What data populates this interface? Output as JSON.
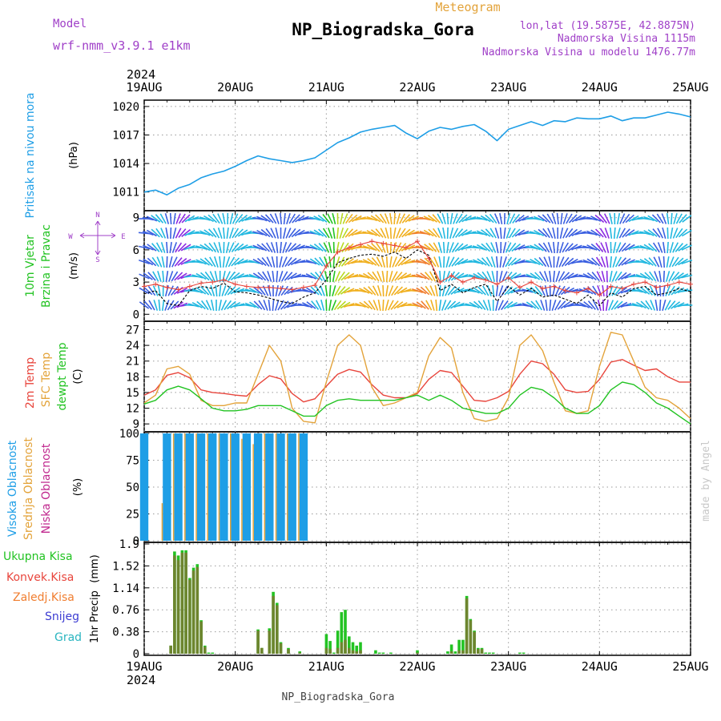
{
  "header": {
    "model_label": "Model",
    "model_name": "wrf-nmm_v3.9.1 e1km",
    "subtitle": "Meteogram",
    "title": "NP_Biogradska_Gora",
    "lonlat": "lon,lat (19.5875E, 42.8875N)",
    "elevation": "Nadmorska Visina 1115m",
    "model_elevation": "Nadmorska Visina u modelu 1476.77m"
  },
  "footer": {
    "station": "NP_Biogradska_Gora",
    "credit": "made by Angel"
  },
  "time_axis": {
    "year": "2024",
    "labels": [
      "19AUG",
      "20AUG",
      "21AUG",
      "22AUG",
      "23AUG",
      "24AUG",
      "25AUG"
    ]
  },
  "colors": {
    "pressure": "#1e9ee6",
    "temp2m": "#e8453c",
    "sfc_temp": "#e3a33a",
    "dewpt": "#22c322",
    "high_cloud": "#1e9ee6",
    "mid_cloud": "#e3a33a",
    "low_cloud": "#c0288e",
    "total_precip": "#22c322",
    "conv_precip": "#e8453c",
    "frz_precip": "#f07e30",
    "snow": "#3c3cd2",
    "graupel": "#2ab5c0",
    "wind_gust": "#e8453c",
    "wind_speed": "#000000",
    "purple": "#a040c8"
  },
  "panels": {
    "pressure": {
      "label": "Pritisak na nivou mora",
      "unit": "(hPa)"
    },
    "wind": {
      "label1": "10m Vjetar",
      "label2": "Brzina i Pravac",
      "unit": "(m/s)",
      "compass": {
        "n": "N",
        "e": "E",
        "w": "W",
        "s": "S"
      }
    },
    "temp": {
      "label_2m": "2m Temp",
      "label_sfc": "SFC Temp",
      "label_dew": "dewpt Temp",
      "unit": "(C)"
    },
    "cloud": {
      "label_high": "Visoka Oblacnost",
      "label_mid": "Srednja Oblacnost",
      "label_low": "Niska Oblacnost",
      "unit": "(%)"
    },
    "precip": {
      "label": "1hr Precip",
      "unit": "(mm)",
      "legend": [
        "Ukupna Kisa",
        "Konvek.Kisa",
        "Zaledj.Kisa",
        "Snijeg",
        "Grad"
      ]
    }
  },
  "chart_data": [
    {
      "type": "line",
      "id": "pressure",
      "ylabel": "Pritisak na nivou mora (hPa)",
      "ylim": [
        1009.2,
        1020.5
      ],
      "yticks": [
        "1011",
        "1014",
        "1017",
        "1020"
      ],
      "x": [
        0,
        3,
        6,
        9,
        12,
        15,
        18,
        21,
        24,
        27,
        30,
        33,
        36,
        39,
        42,
        45,
        48,
        51,
        54,
        57,
        60,
        63,
        66,
        69,
        72,
        75,
        78,
        81,
        84,
        87,
        90,
        93,
        96,
        99,
        102,
        105,
        108,
        111,
        114,
        117,
        120,
        123,
        126,
        129,
        132,
        135,
        138,
        141,
        144
      ],
      "series": [
        {
          "values": [
            1011.0,
            1011.2,
            1010.7,
            1011.4,
            1011.8,
            1012.5,
            1012.9,
            1013.2,
            1013.7,
            1014.3,
            1014.8,
            1014.5,
            1014.3,
            1014.1,
            1014.3,
            1014.6,
            1015.4,
            1016.2,
            1016.7,
            1017.3,
            1017.6,
            1017.8,
            1018.0,
            1017.2,
            1016.6,
            1017.4,
            1017.8,
            1017.6,
            1017.9,
            1018.1,
            1017.4,
            1016.4,
            1017.6,
            1018.0,
            1018.4,
            1018.0,
            1018.5,
            1018.4,
            1018.8,
            1018.7,
            1018.7,
            1019.0,
            1018.5,
            1018.8,
            1018.8,
            1019.1,
            1019.4,
            1019.2,
            1018.9
          ]
        }
      ]
    },
    {
      "type": "line",
      "id": "wind",
      "ylabel": "10m Vjetar Brzina i Pravac (m/s)",
      "ylim": [
        -0.5,
        9.5
      ],
      "yticks": [
        "0",
        "3",
        "6",
        "9"
      ],
      "x": [
        0,
        3,
        6,
        9,
        12,
        15,
        18,
        21,
        24,
        27,
        30,
        33,
        36,
        39,
        42,
        45,
        48,
        51,
        54,
        57,
        60,
        63,
        66,
        69,
        72,
        75,
        78,
        81,
        84,
        87,
        90,
        93,
        96,
        99,
        102,
        105,
        108,
        111,
        114,
        117,
        120,
        123,
        126,
        129,
        132,
        135,
        138,
        141,
        144
      ],
      "series": [
        {
          "name": "gust",
          "values": [
            2.6,
            2.8,
            2.5,
            2.3,
            2.6,
            2.9,
            3.0,
            3.2,
            2.8,
            2.6,
            2.5,
            2.5,
            2.4,
            2.3,
            2.5,
            2.7,
            4.5,
            5.8,
            6.2,
            6.5,
            6.8,
            6.6,
            6.4,
            6.2,
            6.8,
            5.2,
            3.0,
            3.6,
            3.0,
            3.4,
            3.2,
            2.8,
            3.4,
            2.5,
            3.0,
            2.4,
            2.6,
            2.2,
            2.0,
            2.4,
            1.8,
            2.6,
            2.4,
            2.8,
            3.0,
            2.5,
            2.7,
            3.0,
            2.8
          ]
        },
        {
          "name": "speed",
          "values": [
            1.9,
            2.2,
            1.0,
            0.8,
            2.2,
            2.6,
            2.4,
            2.9,
            2.1,
            2.0,
            1.8,
            1.5,
            1.2,
            1.0,
            1.6,
            2.0,
            3.2,
            4.8,
            5.2,
            5.5,
            5.6,
            5.4,
            5.8,
            5.2,
            6.0,
            5.5,
            2.2,
            2.8,
            2.0,
            2.5,
            2.8,
            1.2,
            2.6,
            1.8,
            2.4,
            1.6,
            1.8,
            1.4,
            1.0,
            1.8,
            0.8,
            2.0,
            1.6,
            2.4,
            2.6,
            1.8,
            2.0,
            2.4,
            2.1
          ]
        }
      ]
    },
    {
      "type": "line",
      "id": "temperature",
      "ylabel": "Temp (C)",
      "ylim": [
        7.8,
        28.3
      ],
      "yticks": [
        "9",
        "12",
        "15",
        "18",
        "21",
        "24",
        "27"
      ],
      "x": [
        0,
        3,
        6,
        9,
        12,
        15,
        18,
        21,
        24,
        27,
        30,
        33,
        36,
        39,
        42,
        45,
        48,
        51,
        54,
        57,
        60,
        63,
        66,
        69,
        72,
        75,
        78,
        81,
        84,
        87,
        90,
        93,
        96,
        99,
        102,
        105,
        108,
        111,
        114,
        117,
        120,
        123,
        126,
        129,
        132,
        135,
        138,
        141,
        144
      ],
      "series": [
        {
          "name": "2m Temp",
          "values": [
            14.5,
            15.5,
            18.3,
            18.8,
            17.8,
            15.5,
            15.0,
            14.8,
            14.5,
            14.3,
            16.5,
            18.2,
            17.6,
            14.8,
            13.2,
            13.8,
            16.2,
            18.5,
            19.4,
            18.9,
            16.5,
            14.5,
            14.0,
            14.0,
            14.8,
            17.5,
            19.2,
            18.8,
            16.2,
            13.5,
            13.3,
            14.0,
            15.2,
            18.5,
            21.0,
            20.5,
            18.5,
            15.5,
            15.0,
            15.2,
            17.5,
            20.8,
            21.3,
            20.2,
            19.2,
            19.5,
            18.0,
            17.0,
            17.0
          ]
        },
        {
          "name": "SFC Temp",
          "values": [
            13.0,
            14.5,
            19.5,
            20.0,
            18.5,
            13.5,
            12.5,
            12.5,
            13.0,
            13.0,
            18.5,
            24.0,
            21.0,
            12.0,
            9.5,
            9.2,
            17.0,
            24.0,
            26.0,
            24.0,
            16.0,
            12.5,
            13.0,
            14.0,
            15.0,
            22.0,
            25.5,
            23.5,
            15.0,
            10.0,
            9.5,
            10.0,
            14.0,
            24.0,
            26.0,
            23.0,
            17.0,
            11.5,
            11.0,
            11.5,
            20.0,
            26.5,
            26.0,
            21.0,
            16.0,
            14.0,
            13.5,
            12.0,
            10.0
          ]
        },
        {
          "name": "dewpt Temp",
          "values": [
            12.8,
            13.5,
            15.5,
            16.2,
            15.5,
            13.8,
            12.0,
            11.5,
            11.5,
            11.8,
            12.5,
            12.5,
            12.5,
            11.5,
            10.5,
            10.5,
            12.5,
            13.5,
            13.8,
            13.5,
            13.5,
            13.5,
            13.5,
            14.0,
            14.5,
            13.5,
            14.5,
            13.5,
            12.0,
            11.5,
            11.0,
            11.0,
            12.0,
            14.5,
            16.0,
            15.5,
            14.0,
            12.0,
            11.0,
            11.0,
            12.5,
            15.5,
            17.0,
            16.5,
            15.0,
            13.0,
            12.0,
            10.5,
            9.0
          ]
        }
      ]
    },
    {
      "type": "bar",
      "id": "cloud",
      "ylabel": "Oblacnost (%)",
      "ylim": [
        0,
        100
      ],
      "yticks": [
        "0",
        "25",
        "50",
        "75",
        "100"
      ],
      "x": [
        0,
        3,
        6,
        9,
        12,
        15,
        18,
        21,
        24,
        27,
        30,
        33,
        36,
        39,
        42,
        45,
        48,
        51,
        54,
        57,
        60,
        63,
        66,
        69,
        72,
        75,
        78,
        81,
        84,
        87,
        90,
        93,
        96,
        99,
        102,
        105,
        108,
        111,
        114,
        117,
        120,
        123,
        126,
        129,
        132,
        135,
        138,
        141,
        144
      ],
      "series": [
        {
          "name": "Visoka Oblacnost",
          "values": [
            100,
            0,
            100,
            100,
            100,
            100,
            100,
            100,
            100,
            100,
            100,
            100,
            100,
            100,
            100,
            0,
            0,
            0,
            0,
            0,
            0,
            0,
            0,
            0,
            0,
            0,
            0,
            0,
            0,
            0,
            0,
            0,
            0,
            0,
            0,
            0,
            0,
            0,
            0,
            0,
            0,
            0,
            0,
            0,
            0,
            0,
            0,
            0,
            0
          ]
        },
        {
          "name": "Srednja Oblacnost",
          "values": [
            0,
            0,
            35,
            100,
            100,
            100,
            100,
            100,
            100,
            95,
            90,
            100,
            100,
            100,
            100,
            0,
            0,
            0,
            0,
            0,
            0,
            0,
            0,
            0,
            0,
            0,
            0,
            0,
            0,
            0,
            0,
            0,
            0,
            0,
            0,
            0,
            0,
            0,
            0,
            0,
            0,
            0,
            0,
            0,
            0,
            0,
            0,
            0,
            0
          ]
        },
        {
          "name": "Niska Oblacnost",
          "values": [
            0,
            0,
            0,
            0,
            0,
            0,
            0,
            0,
            0,
            0,
            0,
            0,
            0,
            0,
            0,
            0,
            0,
            0,
            0,
            0,
            0,
            0,
            0,
            0,
            0,
            0,
            0,
            0,
            0,
            0,
            0,
            0,
            0,
            0,
            0,
            0,
            0,
            0,
            0,
            0,
            0,
            0,
            0,
            0,
            0,
            0,
            0,
            0,
            0
          ]
        }
      ]
    },
    {
      "type": "bar",
      "id": "precip",
      "ylabel": "1hr Precip (mm)",
      "ylim": [
        0,
        1.9
      ],
      "yticks": [
        "0",
        "0.38",
        "0.76",
        "1.14",
        "1.52",
        "1.9"
      ],
      "x": [
        7,
        8,
        9,
        10,
        11,
        12,
        13,
        14,
        15,
        16,
        17,
        18,
        30,
        31,
        33,
        34,
        35,
        36,
        38,
        41,
        48,
        49,
        50,
        51,
        52,
        53,
        54,
        55,
        56,
        57,
        61,
        62,
        63,
        65,
        72,
        80,
        81,
        82,
        83,
        84,
        85,
        86,
        87,
        88,
        89,
        90,
        91,
        92,
        99,
        100
      ],
      "series": [
        {
          "name": "Ukupna Kisa",
          "values": [
            0.14,
            1.77,
            1.7,
            1.79,
            1.79,
            1.31,
            1.49,
            1.55,
            0.58,
            0.14,
            0.02,
            0.02,
            0.42,
            0.1,
            0.44,
            1.07,
            0.88,
            0.2,
            0.1,
            0.04,
            0.34,
            0.22,
            0.02,
            0.4,
            0.72,
            0.76,
            0.3,
            0.2,
            0.14,
            0.2,
            0.06,
            0.02,
            0.02,
            0.02,
            0.06,
            0.04,
            0.16,
            0.04,
            0.24,
            0.24,
            1.0,
            0.6,
            0.4,
            0.1,
            0.1,
            0.02,
            0.02,
            0.02,
            0.02,
            0.02
          ]
        },
        {
          "name": "Konvek.Kisa",
          "values": [
            0.14,
            1.7,
            1.62,
            1.75,
            1.75,
            1.28,
            1.44,
            1.5,
            0.56,
            0.12,
            0.0,
            0.0,
            0.4,
            0.1,
            0.4,
            1.0,
            0.84,
            0.18,
            0.08,
            0.02,
            0.1,
            0.08,
            0.0,
            0.1,
            0.2,
            0.24,
            0.1,
            0.06,
            0.04,
            0.06,
            0.0,
            0.0,
            0.0,
            0.0,
            0.02,
            0.0,
            0.04,
            0.0,
            0.06,
            0.06,
            0.96,
            0.58,
            0.38,
            0.08,
            0.08,
            0.0,
            0.0,
            0.0,
            0.0,
            0.0
          ]
        }
      ]
    }
  ]
}
